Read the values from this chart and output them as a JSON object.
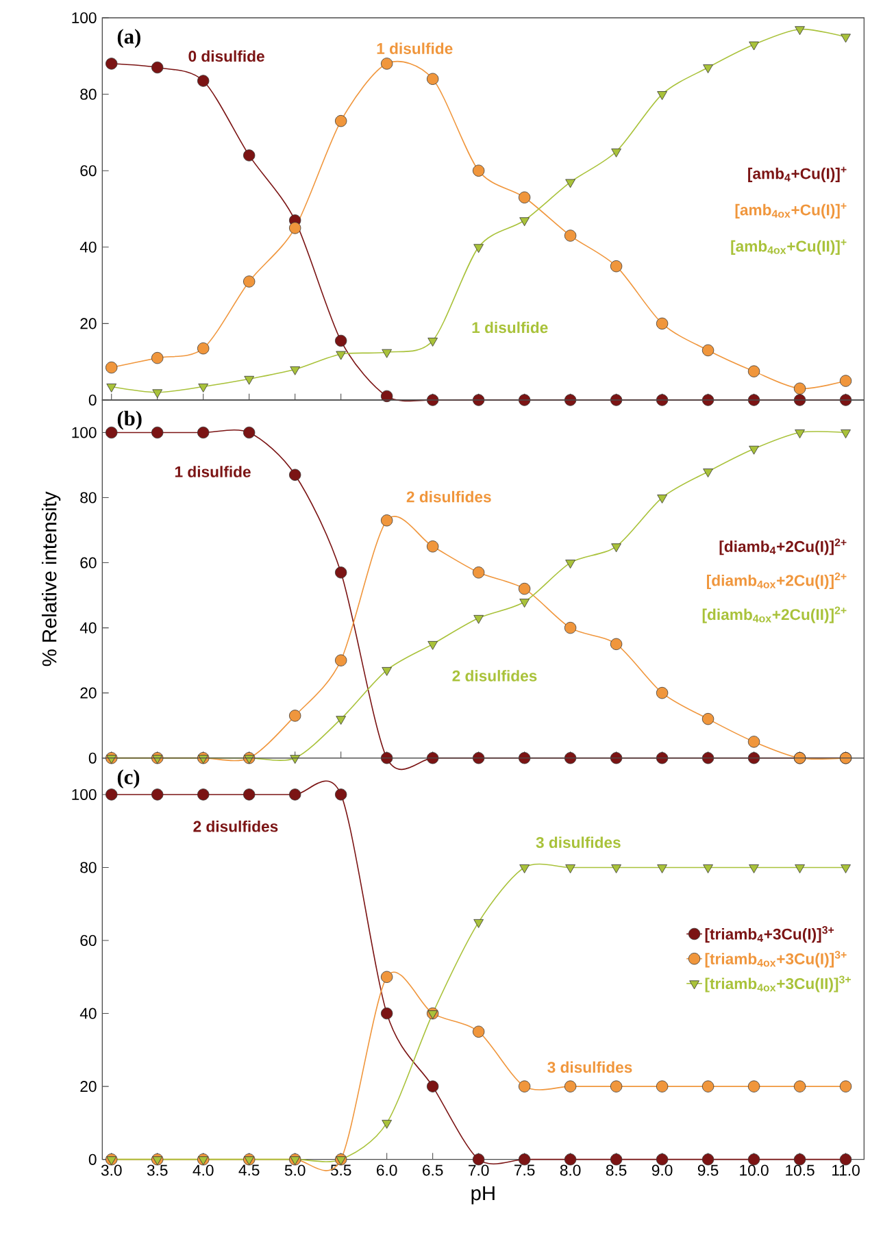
{
  "chart_data": [
    {
      "type": "line",
      "title": "(a)",
      "x": [
        3,
        3.5,
        4,
        4.5,
        5,
        5.5,
        6,
        6.5,
        7,
        7.5,
        8,
        8.5,
        9,
        9.5,
        10,
        10.5,
        11
      ],
      "series": [
        {
          "name": "[amb$_{4}$+Cu(I)]$^{+}$",
          "color": "#7b1414",
          "marker": "circle",
          "values": [
            88,
            87,
            83.5,
            64,
            47,
            15.5,
            1,
            0,
            0,
            0,
            0,
            0,
            0,
            0,
            0,
            0,
            0
          ]
        },
        {
          "name": "[amb$_{4ox}$+Cu(I)]$^{+}$",
          "color": "#f0963c",
          "marker": "circle",
          "values": [
            8.5,
            11,
            13.5,
            31,
            45,
            73,
            88,
            84,
            60,
            53,
            43,
            35,
            20,
            13,
            7.5,
            3,
            5
          ]
        },
        {
          "name": "[amb$_{4ox}$+Cu(II)]$^{+}$",
          "color": "#a9c23a",
          "marker": "triangle",
          "values": [
            3.5,
            2,
            3.5,
            5.5,
            8,
            12,
            12.5,
            15.5,
            40,
            47,
            57,
            65,
            80,
            87,
            93,
            97,
            95
          ]
        }
      ],
      "annotations": [
        "0 disulfide",
        "1 disulfide",
        "1 disulfide"
      ],
      "xlim": [
        2.9,
        11.2
      ],
      "ylim": [
        0,
        100
      ],
      "xticks": [
        {
          "value": 3,
          "label": null
        },
        {
          "value": 3.5,
          "label": null
        },
        {
          "value": 4,
          "label": null
        },
        {
          "value": 4.5,
          "label": null
        },
        {
          "value": 5,
          "label": null
        },
        {
          "value": 5.5,
          "label": null
        },
        {
          "value": 6,
          "label": null
        },
        {
          "value": 6.5,
          "label": null
        },
        {
          "value": 7,
          "label": null
        },
        {
          "value": 7.5,
          "label": null
        },
        {
          "value": 8,
          "label": null
        },
        {
          "value": 8.5,
          "label": null
        },
        {
          "value": 9,
          "label": null
        },
        {
          "value": 9.5,
          "label": null
        },
        {
          "value": 10,
          "label": null
        },
        {
          "value": 10.5,
          "label": null
        },
        {
          "value": 11,
          "label": null
        }
      ],
      "yticks": [
        0,
        20,
        40,
        60,
        80,
        100
      ],
      "tick_labels": "y",
      "legend": false,
      "grid": false
    },
    {
      "type": "line",
      "title": "(b)",
      "ylabel": "% Relative intensity",
      "x": [
        3,
        3.5,
        4,
        4.5,
        5,
        5.5,
        6,
        6.5,
        7,
        7.5,
        8,
        8.5,
        9,
        9.5,
        10,
        10.5,
        11
      ],
      "series": [
        {
          "name": "[diamb$_{4}$+2Cu(I)]$^{2+}$",
          "color": "#7b1414",
          "marker": "circle",
          "values": [
            100,
            100,
            100,
            100,
            87,
            57,
            0,
            0,
            0,
            0,
            0,
            0,
            0,
            0,
            0,
            0,
            0
          ]
        },
        {
          "name": "[diamb$_{4ox}$+2Cu(I)]$^{2+}$",
          "color": "#f0963c",
          "marker": "circle",
          "values": [
            0,
            0,
            0,
            0,
            13,
            30,
            73,
            65,
            57,
            52,
            40,
            35,
            20,
            12,
            5,
            0,
            0
          ]
        },
        {
          "name": "[diamb$_{4ox}$+2Cu(II)]$^{2+}$",
          "color": "#a9c23a",
          "marker": "triangle",
          "values": [
            0,
            0,
            0,
            0,
            0,
            12,
            27,
            35,
            43,
            48,
            60,
            65,
            80,
            88,
            95,
            100,
            100
          ]
        }
      ],
      "annotations": [
        "1 disulfide",
        "2 disulfides",
        "2 disulfides"
      ],
      "xlim": [
        2.9,
        11.2
      ],
      "ylim": [
        0,
        110
      ],
      "xticks": [
        {
          "value": 3,
          "label": null
        },
        {
          "value": 3.5,
          "label": null
        },
        {
          "value": 4,
          "label": null
        },
        {
          "value": 4.5,
          "label": null
        },
        {
          "value": 5,
          "label": null
        },
        {
          "value": 5.5,
          "label": null
        },
        {
          "value": 6,
          "label": null
        },
        {
          "value": 6.5,
          "label": null
        },
        {
          "value": 7,
          "label": null
        },
        {
          "value": 7.5,
          "label": null
        },
        {
          "value": 8,
          "label": null
        },
        {
          "value": 8.5,
          "label": null
        },
        {
          "value": 9,
          "label": null
        },
        {
          "value": 9.5,
          "label": null
        },
        {
          "value": 10,
          "label": null
        },
        {
          "value": 10.5,
          "label": null
        },
        {
          "value": 11,
          "label": null
        }
      ],
      "yticks": [
        0,
        20,
        40,
        60,
        80,
        100
      ],
      "tick_labels": "y",
      "legend": false,
      "grid": false
    },
    {
      "type": "line",
      "title": "(c)",
      "xlabel": "pH",
      "x": [
        3,
        3.5,
        4,
        4.5,
        5,
        5.5,
        6,
        6.5,
        7,
        7.5,
        8,
        8.5,
        9,
        9.5,
        10,
        10.5,
        11
      ],
      "series": [
        {
          "name": "[triamb$_{4}$+3Cu(I)]$^{3+}$",
          "color": "#7b1414",
          "marker": "circle",
          "values": [
            100,
            100,
            100,
            100,
            100,
            100,
            40,
            20,
            0,
            0,
            0,
            0,
            0,
            0,
            0,
            0,
            0
          ]
        },
        {
          "name": "[triamb$_{4ox}$+3Cu(I)]$^{3+}$",
          "color": "#f0963c",
          "marker": "circle",
          "values": [
            0,
            0,
            0,
            0,
            0,
            0,
            50,
            40,
            35,
            20,
            20,
            20,
            20,
            20,
            20,
            20,
            20
          ]
        },
        {
          "name": "[triamb$_{4ox}$+3Cu(II)]$^{3+}$",
          "color": "#a9c23a",
          "marker": "triangle",
          "values": [
            0,
            0,
            0,
            0,
            0,
            0,
            10,
            40,
            65,
            80,
            80,
            80,
            80,
            80,
            80,
            80,
            80
          ]
        }
      ],
      "annotations": [
        "2 disulfides",
        "3 disulfides",
        "3 disulfides"
      ],
      "xlim": [
        2.9,
        11.2
      ],
      "ylim": [
        0,
        110
      ],
      "xticks": [
        {
          "value": 3,
          "label": "3.0"
        },
        {
          "value": 3.5,
          "label": "3.5"
        },
        {
          "value": 4,
          "label": "4.0"
        },
        {
          "value": 4.5,
          "label": "4.5"
        },
        {
          "value": 5,
          "label": "5.0"
        },
        {
          "value": 5.5,
          "label": "5.5"
        },
        {
          "value": 6,
          "label": "6.0"
        },
        {
          "value": 6.5,
          "label": "6.5"
        },
        {
          "value": 7,
          "label": "7.0"
        },
        {
          "value": 7.5,
          "label": "7.5"
        },
        {
          "value": 8,
          "label": "8.0"
        },
        {
          "value": 8.5,
          "label": "8.5"
        },
        {
          "value": 9,
          "label": "9.0"
        },
        {
          "value": 9.5,
          "label": "9.5"
        },
        {
          "value": 10,
          "label": "10.0"
        },
        {
          "value": 10.5,
          "label": "10.5"
        },
        {
          "value": 11,
          "label": "11.0"
        }
      ],
      "yticks": [
        0,
        20,
        40,
        60,
        80,
        100
      ],
      "legend": "right",
      "grid": false
    }
  ]
}
